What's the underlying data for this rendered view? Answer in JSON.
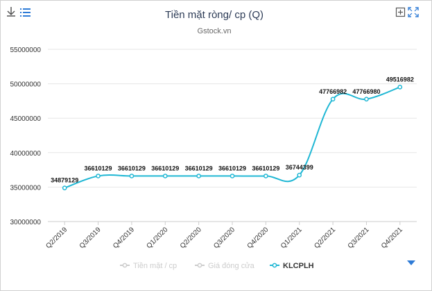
{
  "toolbar": {
    "download_icon": "download-icon",
    "menu_icon": "hamburger-menu-icon",
    "add_icon": "add-box-icon",
    "fullscreen_icon": "fullscreen-icon",
    "scroll_icon": "triangle-down-icon"
  },
  "colors": {
    "series": "#1fb7d4",
    "grid": "#e6e6e6",
    "legend_inactive": "#cccccc",
    "legend_active": "#333333",
    "accent": "#3b7fc4"
  },
  "chart_data": {
    "type": "line",
    "title": "Tiền mặt ròng/ cp (Q)",
    "subtitle": "Gstock.vn",
    "categories": [
      "Q2/2019",
      "Q3/2019",
      "Q4/2019",
      "Q1/2020",
      "Q2/2020",
      "Q3/2020",
      "Q4/2020",
      "Q1/2021",
      "Q2/2021",
      "Q3/2021",
      "Q4/2021"
    ],
    "y_ticks": [
      "30000000",
      "35000000",
      "40000000",
      "45000000",
      "50000000",
      "55000000"
    ],
    "ylim": [
      30000000,
      55000000
    ],
    "grid": true,
    "legend_position": "bottom",
    "legend": [
      {
        "name": "Tiền mặt / cp",
        "active": false
      },
      {
        "name": "Giá đóng cửa",
        "active": false
      },
      {
        "name": "KLCPLH",
        "active": true
      }
    ],
    "series": [
      {
        "name": "KLCPLH",
        "values": [
          34879129,
          36610129,
          36610129,
          36610129,
          36610129,
          36610129,
          36610129,
          36744399,
          47766982,
          47766980,
          49516982
        ],
        "labels": [
          "34879129",
          "36610129",
          "36610129",
          "36610129",
          "36610129",
          "36610129",
          "36610129",
          "36744399",
          "47766982",
          "47766980",
          "49516982"
        ]
      }
    ]
  }
}
